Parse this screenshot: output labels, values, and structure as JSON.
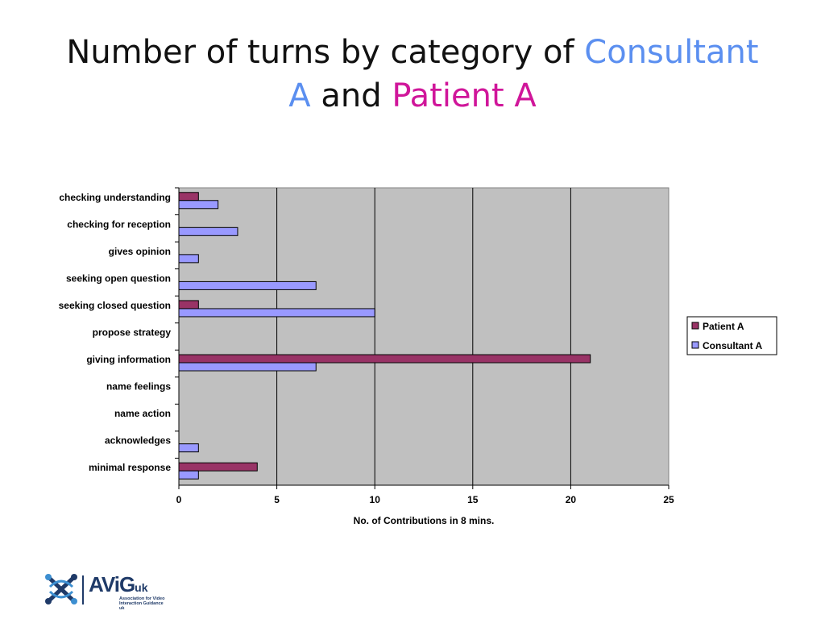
{
  "title": {
    "part1": "Number of turns by category of",
    "consultant": "Consultant",
    "consultant_a": "A",
    "part2": "and",
    "patient": "Patient A"
  },
  "colors": {
    "plot_background": "#c0c0c0",
    "patient": "#993366",
    "consultant": "#9999ff",
    "title_consultant": "#5b8ff0",
    "title_patient": "#d0169a"
  },
  "chart_data": {
    "type": "bar",
    "orientation": "horizontal",
    "categories": [
      "checking understanding",
      "checking for reception",
      "gives opinion",
      "seeking open question",
      "seeking closed question",
      "propose strategy",
      "giving information",
      "name feelings",
      "name action",
      "acknowledges",
      "minimal response"
    ],
    "series": [
      {
        "name": "Patient A",
        "color": "#993366",
        "values": [
          1,
          0,
          0,
          0,
          1,
          0,
          21,
          0,
          0,
          0,
          4
        ]
      },
      {
        "name": "Consultant A",
        "color": "#9999ff",
        "values": [
          2,
          3,
          1,
          7,
          10,
          0,
          7,
          0,
          0,
          1,
          1
        ]
      }
    ],
    "xlabel": "No. of Contributions in 8 mins.",
    "xlim": [
      0,
      25
    ],
    "xticks": [
      0,
      5,
      10,
      15,
      20,
      25
    ],
    "grid": true,
    "legend": "right"
  },
  "logo": {
    "brand": "AViG",
    "brand_suffix": "uk",
    "tagline": "Association for Video Interaction Guidance uk"
  }
}
